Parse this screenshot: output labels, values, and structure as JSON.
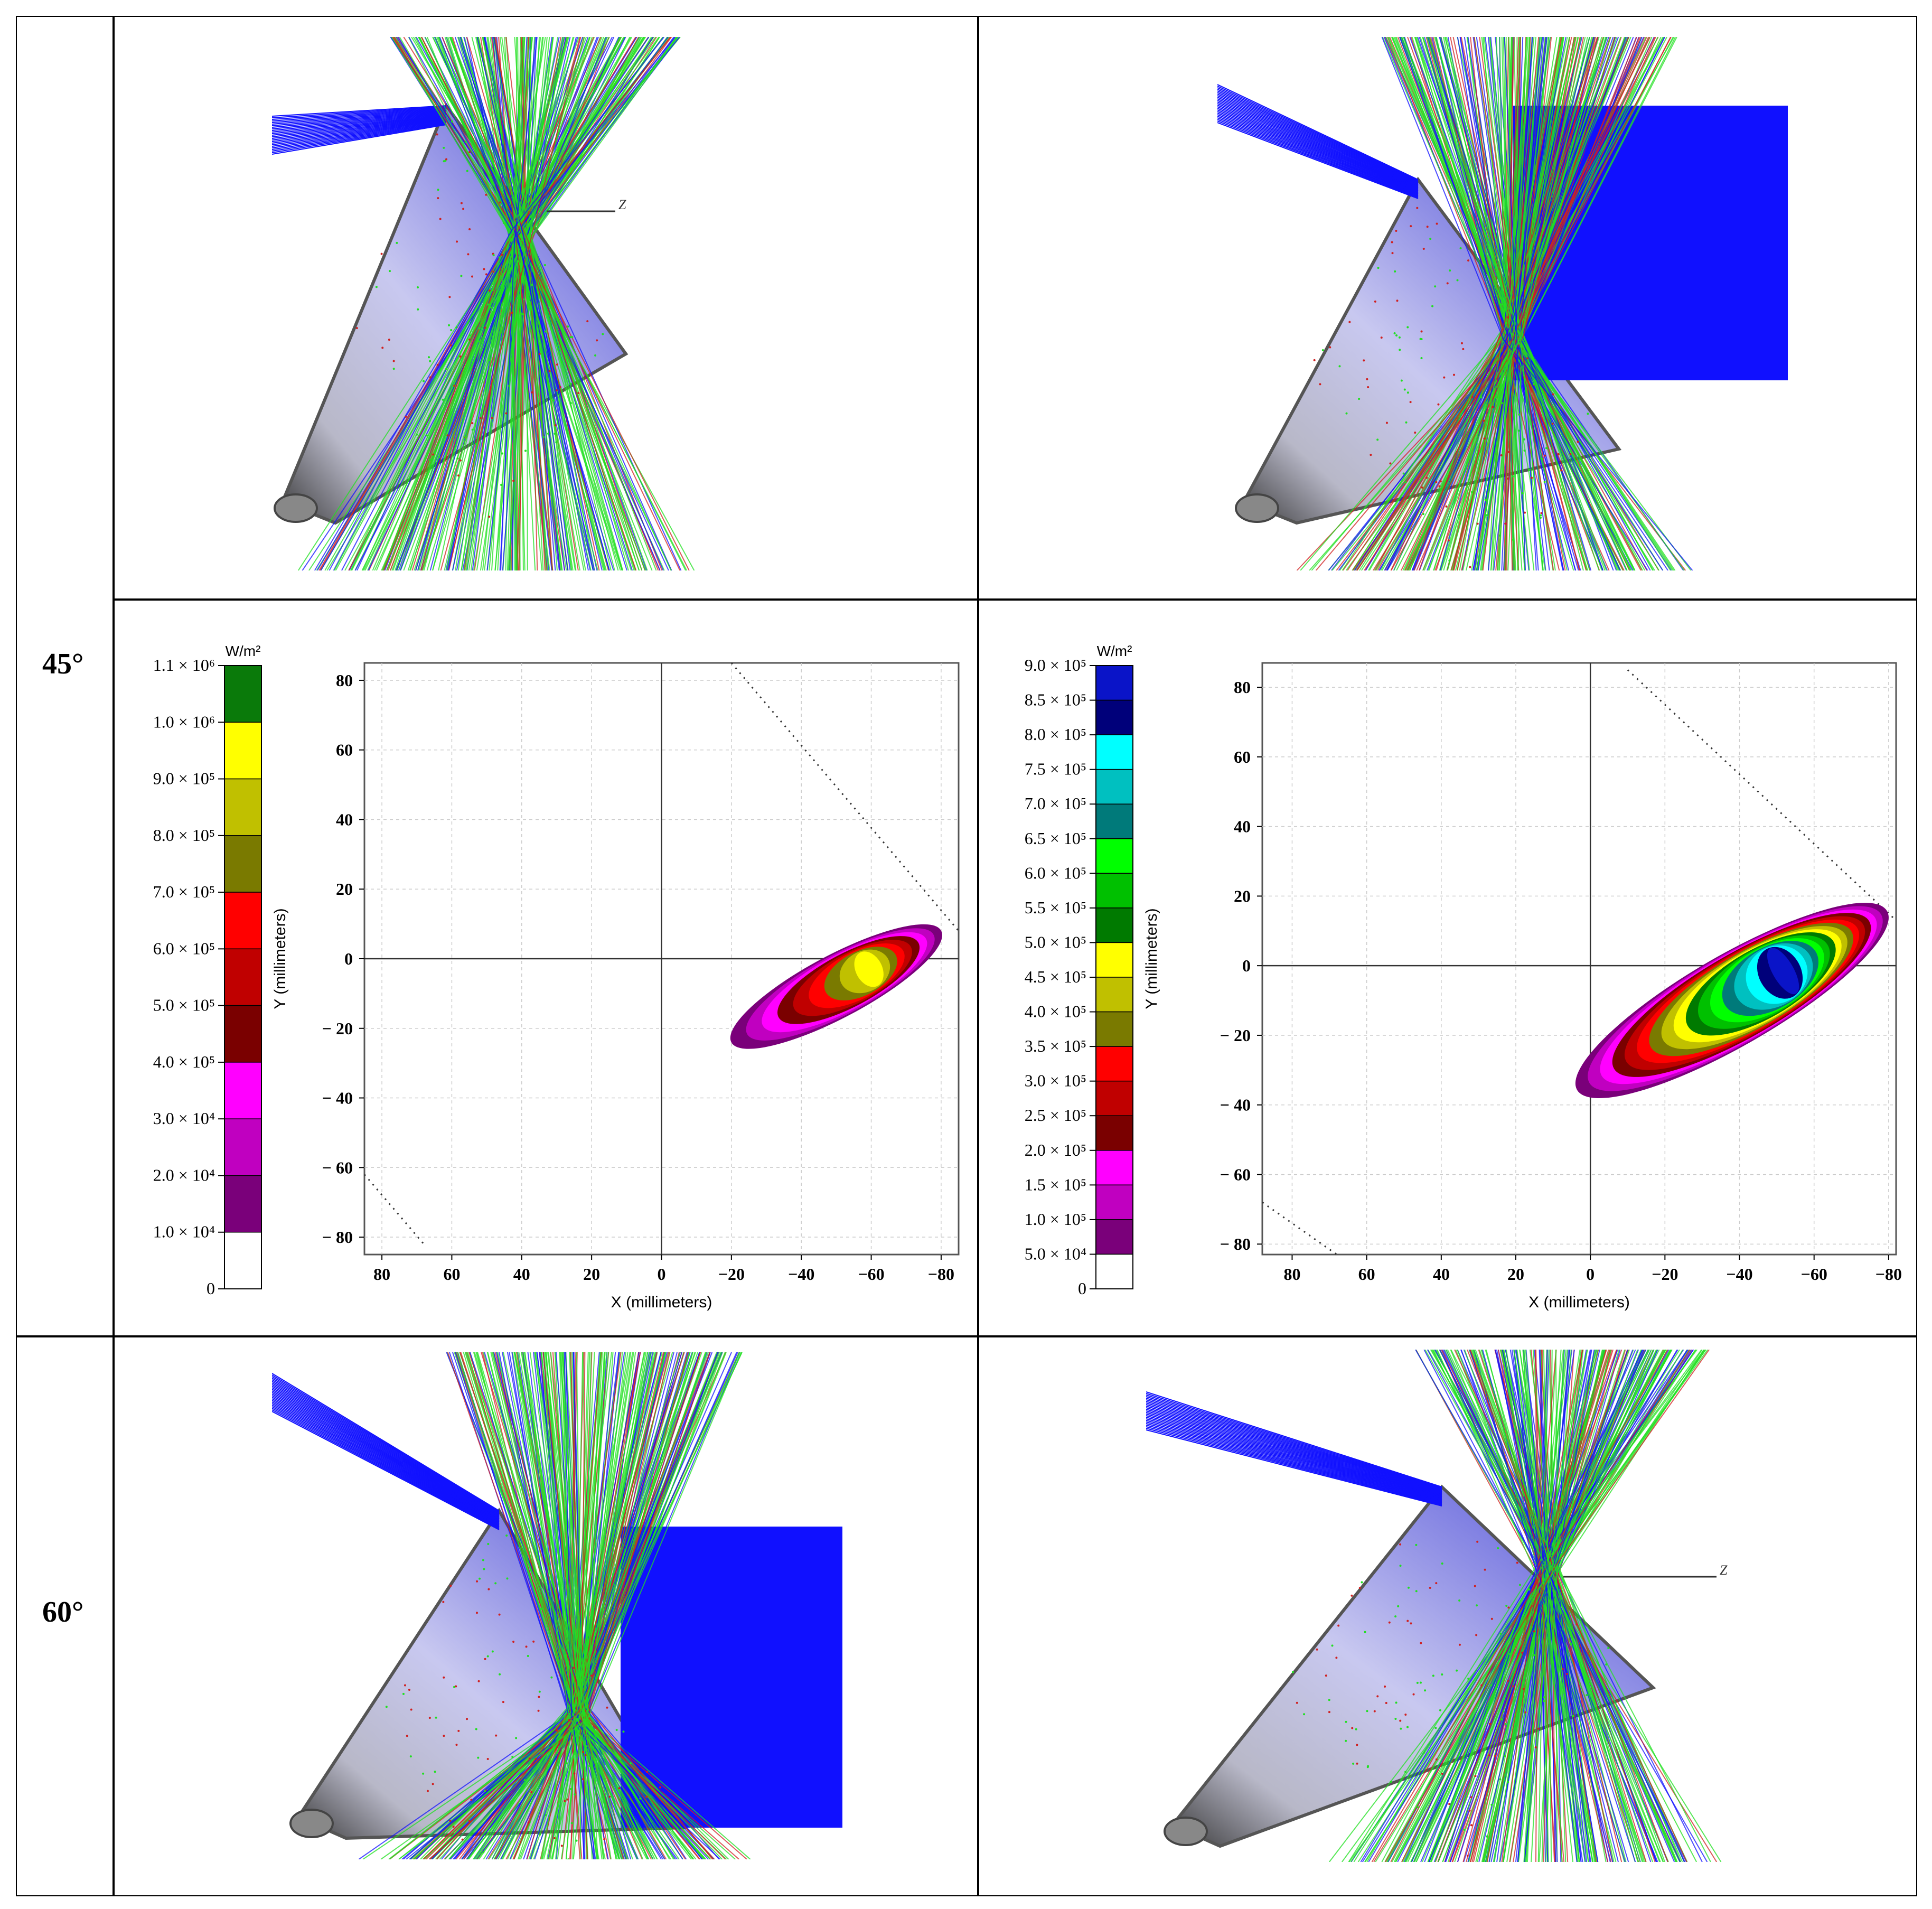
{
  "rows": [
    {
      "angle_label": "45°"
    },
    {
      "angle_label": "60°"
    }
  ],
  "ray_views": [
    {
      "id": "45-left",
      "axis_label": "Z",
      "show_axis": true
    },
    {
      "id": "45-right",
      "axis_label": "",
      "show_axis": false
    },
    {
      "id": "60-left",
      "axis_label": "",
      "show_axis": false
    },
    {
      "id": "60-right",
      "axis_label": "Z",
      "show_axis": true
    }
  ],
  "colors": {
    "ray_blue": "#1010ff",
    "ray_green": "#20e020",
    "ray_red": "#d02020",
    "cone_light": "#c8c8f0",
    "cone_dark": "#505050"
  },
  "chart_data": [
    {
      "type": "heatmap",
      "colorbar_unit": "W/m²",
      "colorbar_ticks": [
        "1.1 × 10⁶",
        "1.0 × 10⁶",
        "9.0 × 10⁵",
        "8.0 × 10⁵",
        "7.0 × 10⁵",
        "6.0 × 10⁵",
        "5.0 × 10⁵",
        "4.0 × 10⁵",
        "3.0 × 10⁴",
        "2.0 × 10⁴",
        "1.0 × 10⁴",
        "0"
      ],
      "colorbar_colors": [
        "#0a7a0a",
        "#ffff00",
        "#c0c000",
        "#7a7a00",
        "#ff0000",
        "#c00000",
        "#7a0000",
        "#ff00ff",
        "#c000c0",
        "#7a007a",
        "#ffffff"
      ],
      "xlabel": "X (millimeters)",
      "ylabel": "Y (millimeters)",
      "xlim": [
        85,
        -85
      ],
      "ylim": [
        -85,
        85
      ],
      "x_ticks": [
        80,
        60,
        40,
        20,
        0,
        -20,
        -40,
        -60,
        -80
      ],
      "y_ticks": [
        80,
        60,
        40,
        20,
        0,
        -20,
        -40,
        -60,
        -80
      ],
      "spot": {
        "center_x": -50,
        "center_y": -8,
        "major_half": 34,
        "minor_half": 9,
        "angle_deg": 28,
        "levels": 9
      }
    },
    {
      "type": "heatmap",
      "colorbar_unit": "W/m²",
      "colorbar_ticks": [
        "9.0 × 10⁵",
        "8.5 × 10⁵",
        "8.0 × 10⁵",
        "7.5 × 10⁵",
        "7.0 × 10⁵",
        "6.5 × 10⁵",
        "6.0 × 10⁵",
        "5.5 × 10⁵",
        "5.0 × 10⁵",
        "4.5 × 10⁵",
        "4.0 × 10⁵",
        "3.5 × 10⁵",
        "3.0 × 10⁵",
        "2.5 × 10⁵",
        "2.0 × 10⁵",
        "1.5 × 10⁵",
        "1.0 × 10⁵",
        "5.0 × 10⁴",
        "0"
      ],
      "colorbar_colors": [
        "#0a14c8",
        "#00007a",
        "#00ffff",
        "#00c0c0",
        "#007a7a",
        "#00ff00",
        "#00c000",
        "#007a00",
        "#ffff00",
        "#c0c000",
        "#7a7a00",
        "#ff0000",
        "#c00000",
        "#7a0000",
        "#ff00ff",
        "#c000c0",
        "#7a007a",
        "#ffffff"
      ],
      "xlabel": "X (millimeters)",
      "ylabel": "Y (millimeters)",
      "xlim": [
        88,
        -82
      ],
      "ylim": [
        -83,
        87
      ],
      "x_ticks": [
        80,
        60,
        40,
        20,
        0,
        -20,
        -40,
        -60,
        -80
      ],
      "y_ticks": [
        80,
        60,
        40,
        20,
        0,
        -20,
        -40,
        -60,
        -80
      ],
      "spot": {
        "center_x": -38,
        "center_y": -10,
        "major_half": 48,
        "minor_half": 13,
        "angle_deg": 30,
        "levels": 17
      }
    }
  ]
}
